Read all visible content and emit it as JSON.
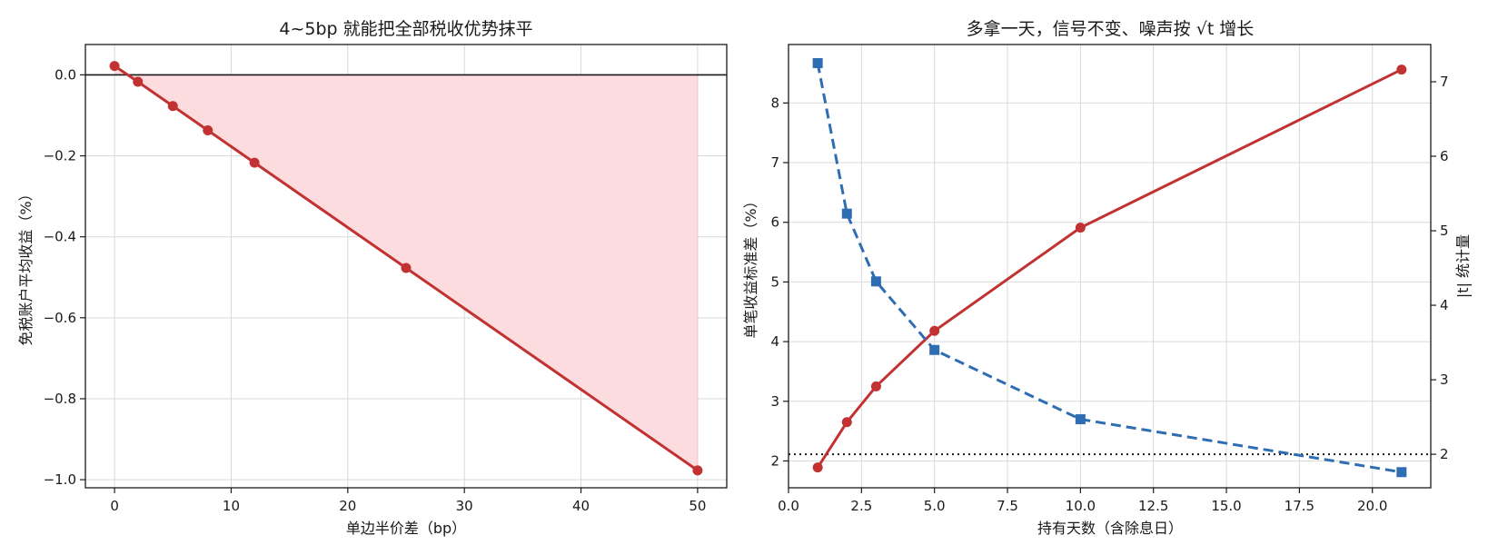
{
  "colors": {
    "red": "#c23232",
    "blue": "#2f6db3",
    "fill": "#fddcdf",
    "black": "#1a1a1a"
  },
  "chart_data": [
    {
      "type": "line",
      "title": "4~5bp 就能把全部税收优势抹平",
      "xlabel": "单边半价差（bp）",
      "ylabel": "免税账户平均收益（%）",
      "xlim": [
        -2.5,
        52.5
      ],
      "ylim": [
        -1.02,
        0.075
      ],
      "xticks": [
        0,
        10,
        20,
        30,
        40,
        50
      ],
      "xtick_labels": [
        "0",
        "10",
        "20",
        "30",
        "40",
        "50"
      ],
      "yticks": [
        0.0,
        -0.2,
        -0.4,
        -0.6,
        -0.8,
        -1.0
      ],
      "ytick_labels": [
        "0.0",
        "−0.2",
        "−0.4",
        "−0.6",
        "−0.8",
        "−1.0"
      ],
      "grid": true,
      "reference_line_y": 0.0,
      "fill_below_zero": true,
      "series": [
        {
          "x": [
            0,
            2,
            5,
            8,
            12,
            25,
            50
          ],
          "values": [
            0.022,
            -0.017,
            -0.077,
            -0.137,
            -0.217,
            -0.477,
            -0.977
          ],
          "color": "#c23232",
          "marker": "circle",
          "linestyle": "solid"
        }
      ]
    },
    {
      "type": "line",
      "title": "多拿一天，信号不变、噪声按 √t 增长",
      "xlabel": "持有天数（含除息日）",
      "ylabel": "单笔收益标准差（%）",
      "ylabel_right": "|t| 统计量",
      "xlim": [
        0.0,
        22.0
      ],
      "ylim": [
        1.55,
        8.98
      ],
      "ylim_right": [
        1.55,
        7.5
      ],
      "xticks": [
        0.0,
        2.5,
        5.0,
        7.5,
        10.0,
        12.5,
        15.0,
        17.5,
        20.0
      ],
      "xtick_labels": [
        "0.0",
        "2.5",
        "5.0",
        "7.5",
        "10.0",
        "12.5",
        "15.0",
        "17.5",
        "20.0"
      ],
      "yticks": [
        2,
        3,
        4,
        5,
        6,
        7,
        8
      ],
      "ytick_labels": [
        "2",
        "3",
        "4",
        "5",
        "6",
        "7",
        "8"
      ],
      "yticks_right": [
        2,
        3,
        4,
        5,
        6,
        7
      ],
      "ytick_labels_right": [
        "2",
        "3",
        "4",
        "5",
        "6",
        "7"
      ],
      "grid": true,
      "reference_line_y_right": 2.0,
      "series": [
        {
          "axis": "left",
          "x": [
            1,
            2,
            3,
            5,
            10,
            21
          ],
          "values": [
            1.89,
            2.65,
            3.25,
            4.18,
            5.91,
            8.56
          ],
          "color": "#c23232",
          "marker": "circle",
          "linestyle": "solid"
        },
        {
          "axis": "right",
          "x": [
            1,
            2,
            3,
            5,
            10,
            21
          ],
          "values": [
            7.25,
            5.23,
            4.32,
            3.4,
            2.47,
            1.76
          ],
          "color": "#2f6db3",
          "marker": "square",
          "linestyle": "dashed"
        }
      ]
    }
  ]
}
